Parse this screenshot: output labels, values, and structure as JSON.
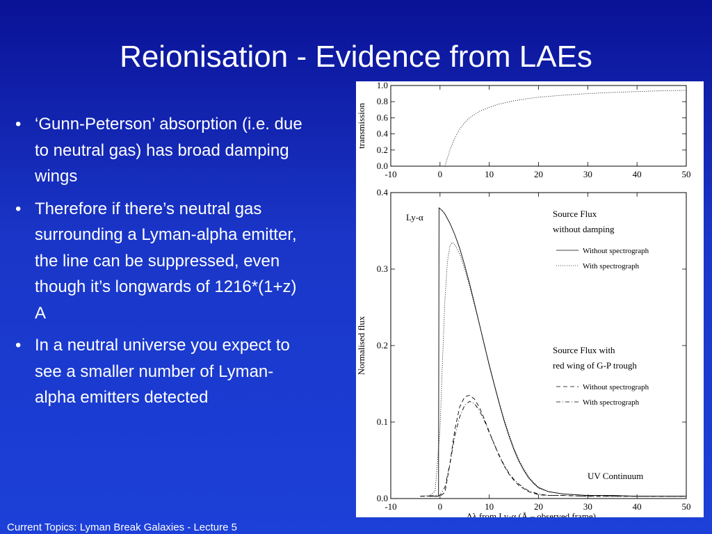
{
  "slide": {
    "title": "Reionisation - Evidence from LAEs",
    "bullets": [
      "‘Gunn-Peterson’ absorption (i.e. due to neutral gas) has broad damping wings",
      "Therefore if there’s neutral gas surrounding a Lyman-alpha emitter, the line can be suppressed, even though it’s longwards of 1216*(1+z) A",
      "In a neutral universe you expect to see a smaller number of Lyman-alpha emitters detected"
    ],
    "bullet_glyph": "•",
    "footer": "Current Topics:  Lyman Break Galaxies - Lecture 5",
    "colors": {
      "background": "#1a36c8",
      "text": "#ffffff"
    }
  },
  "chart_data": [
    {
      "type": "line",
      "ylabel": "transmission",
      "xlim": [
        -10,
        50
      ],
      "ylim": [
        0,
        1
      ],
      "x_ticks": [
        "-10",
        "0",
        "10",
        "20",
        "30",
        "40",
        "50"
      ],
      "y_ticks": [
        "0.0",
        "0.2",
        "0.4",
        "0.6",
        "0.8",
        "1.0"
      ],
      "series": [
        {
          "style": "dotted",
          "x": [
            1,
            2,
            3,
            4,
            5,
            6,
            8,
            10,
            12,
            15,
            18,
            20,
            25,
            30,
            35,
            40,
            45,
            50
          ],
          "y": [
            0,
            0.2,
            0.35,
            0.46,
            0.54,
            0.6,
            0.68,
            0.73,
            0.77,
            0.81,
            0.84,
            0.855,
            0.88,
            0.9,
            0.915,
            0.925,
            0.935,
            0.94
          ]
        }
      ]
    },
    {
      "type": "line",
      "xlabel": "Δλ from Ly-α (Å – observed frame)",
      "ylabel": "Normalised flux",
      "xlim": [
        -10,
        50
      ],
      "ylim": [
        0,
        0.4
      ],
      "x_ticks": [
        "-10",
        "0",
        "10",
        "20",
        "30",
        "40",
        "50"
      ],
      "y_ticks": [
        "0.0",
        "0.1",
        "0.2",
        "0.3",
        "0.4"
      ],
      "annotations": {
        "lya": "Ly-α",
        "group1_title_1": "Source Flux",
        "group1_title_2": "without damping",
        "group2_title_1": "Source Flux with",
        "group2_title_2": "red wing of G-P trough",
        "continuum": "UV Continuum"
      },
      "series": [
        {
          "name": "Without spectrograph",
          "group": "Source Flux without damping",
          "style": "solid",
          "x": [
            -2,
            -0.3,
            -0.2,
            0,
            0.5,
            1,
            2,
            3,
            4,
            5,
            6,
            7,
            8,
            9,
            10,
            11,
            12,
            13,
            14,
            15,
            16,
            17,
            18,
            19,
            20,
            22,
            25,
            30,
            35,
            40,
            45,
            50
          ],
          "y": [
            0.003,
            0.003,
            0.38,
            0.379,
            0.376,
            0.372,
            0.36,
            0.345,
            0.327,
            0.305,
            0.281,
            0.255,
            0.228,
            0.201,
            0.174,
            0.149,
            0.125,
            0.102,
            0.082,
            0.064,
            0.049,
            0.037,
            0.027,
            0.02,
            0.014,
            0.009,
            0.006,
            0.004,
            0.004,
            0.003,
            0.003,
            0.003
          ]
        },
        {
          "name": "With spectrograph",
          "group": "Source Flux without damping",
          "style": "dotted",
          "x": [
            -4,
            -2,
            -1,
            0,
            0.5,
            1,
            1.5,
            2,
            2.5,
            3,
            4,
            5,
            6,
            7,
            8,
            9,
            10,
            11,
            12,
            13,
            14,
            15,
            16,
            17,
            18,
            19,
            20,
            22,
            25,
            30,
            40,
            50
          ],
          "y": [
            0.003,
            0.004,
            0.01,
            0.09,
            0.18,
            0.26,
            0.31,
            0.33,
            0.335,
            0.332,
            0.32,
            0.3,
            0.278,
            0.253,
            0.228,
            0.2,
            0.175,
            0.15,
            0.126,
            0.104,
            0.084,
            0.066,
            0.051,
            0.039,
            0.029,
            0.021,
            0.015,
            0.009,
            0.006,
            0.004,
            0.003,
            0.003
          ]
        },
        {
          "name": "Without spectrograph",
          "group": "Source Flux with red wing of G-P trough",
          "style": "dashed",
          "x": [
            -4,
            0,
            1,
            2,
            3,
            4,
            5,
            6,
            7,
            8,
            9,
            10,
            11,
            12,
            13,
            14,
            15,
            16,
            17,
            18,
            19,
            20,
            22,
            25,
            30,
            40,
            50
          ],
          "y": [
            0.003,
            0.003,
            0.008,
            0.045,
            0.09,
            0.12,
            0.133,
            0.135,
            0.13,
            0.119,
            0.104,
            0.087,
            0.071,
            0.056,
            0.043,
            0.032,
            0.024,
            0.017,
            0.013,
            0.009,
            0.007,
            0.005,
            0.004,
            0.004,
            0.003,
            0.003,
            0.003
          ]
        },
        {
          "name": "With spectrograph",
          "group": "Source Flux with red wing of G-P trough",
          "style": "dashdot",
          "x": [
            -4,
            0,
            1,
            2,
            3,
            4,
            5,
            6,
            7,
            8,
            9,
            10,
            11,
            12,
            13,
            14,
            15,
            16,
            17,
            18,
            19,
            20,
            22,
            25,
            30,
            40,
            50
          ],
          "y": [
            0.003,
            0.004,
            0.015,
            0.045,
            0.082,
            0.107,
            0.122,
            0.127,
            0.124,
            0.115,
            0.102,
            0.086,
            0.071,
            0.057,
            0.044,
            0.033,
            0.025,
            0.019,
            0.014,
            0.01,
            0.008,
            0.006,
            0.004,
            0.004,
            0.003,
            0.003,
            0.003
          ]
        }
      ]
    }
  ]
}
